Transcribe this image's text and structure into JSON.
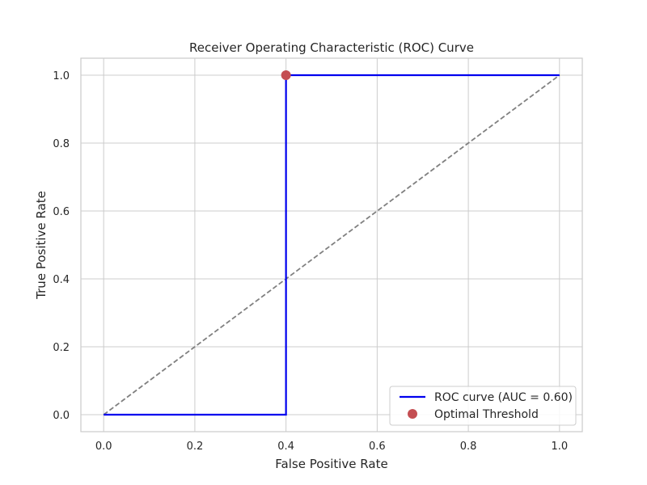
{
  "chart_data": {
    "type": "line",
    "title": "Receiver Operating Characteristic (ROC) Curve",
    "xlabel": "False Positive Rate",
    "ylabel": "True Positive Rate",
    "xlim": [
      -0.05,
      1.05
    ],
    "ylim": [
      -0.05,
      1.05
    ],
    "grid": true,
    "xticks": [
      0.0,
      0.2,
      0.4,
      0.6,
      0.8,
      1.0
    ],
    "xtick_labels": [
      "0.0",
      "0.2",
      "0.4",
      "0.6",
      "0.8",
      "1.0"
    ],
    "yticks": [
      0.0,
      0.2,
      0.4,
      0.6,
      0.8,
      1.0
    ],
    "ytick_labels": [
      "0.0",
      "0.2",
      "0.4",
      "0.6",
      "0.8",
      "1.0"
    ],
    "series": [
      {
        "name": "ROC curve (AUC = 0.60)",
        "kind": "line",
        "color": "#0000ee",
        "x": [
          0.0,
          0.4,
          0.4,
          1.0
        ],
        "y": [
          0.0,
          0.0,
          1.0,
          1.0
        ]
      },
      {
        "kind": "line",
        "style": "dashed",
        "color": "#808080",
        "x": [
          0.0,
          1.0
        ],
        "y": [
          0.0,
          1.0
        ]
      },
      {
        "name": "Optimal Threshold",
        "kind": "scatter",
        "color": "#c44e52",
        "x": [
          0.4
        ],
        "y": [
          1.0
        ]
      }
    ],
    "legend": {
      "placement": "lower right",
      "entries": [
        "ROC curve (AUC = 0.60)",
        "Optimal Threshold"
      ]
    }
  }
}
